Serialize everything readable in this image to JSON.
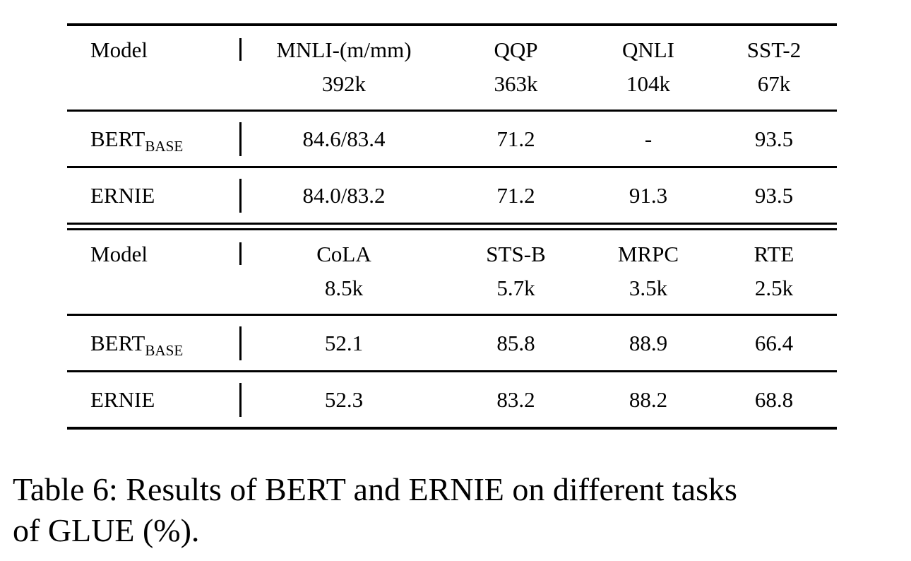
{
  "page": {
    "background": "#ffffff",
    "text_color": "#000000",
    "rule_color": "#000000"
  },
  "tables": [
    {
      "header": {
        "model_label": "Model",
        "columns": [
          {
            "label": "MNLI-(m/mm)",
            "size": "392k"
          },
          {
            "label": "QQP",
            "size": "363k"
          },
          {
            "label": "QNLI",
            "size": "104k"
          },
          {
            "label": "SST-2",
            "size": "67k"
          }
        ]
      },
      "rows": [
        {
          "model": "BERT",
          "model_subscript": "BASE",
          "values": [
            "84.6/83.4",
            "71.2",
            "-",
            "93.5"
          ]
        },
        {
          "model": "ERNIE",
          "model_subscript": "",
          "values": [
            "84.0/83.2",
            "71.2",
            "91.3",
            "93.5"
          ]
        }
      ]
    },
    {
      "header": {
        "model_label": "Model",
        "columns": [
          {
            "label": "CoLA",
            "size": "8.5k"
          },
          {
            "label": "STS-B",
            "size": "5.7k"
          },
          {
            "label": "MRPC",
            "size": "3.5k"
          },
          {
            "label": "RTE",
            "size": "2.5k"
          }
        ]
      },
      "rows": [
        {
          "model": "BERT",
          "model_subscript": "BASE",
          "values": [
            "52.1",
            "85.8",
            "88.9",
            "66.4"
          ]
        },
        {
          "model": "ERNIE",
          "model_subscript": "",
          "values": [
            "52.3",
            "83.2",
            "88.2",
            "68.8"
          ]
        }
      ]
    }
  ],
  "caption": {
    "line1": "Table 6: Results of BERT and ERNIE on different tasks",
    "line2": "of GLUE (%)."
  }
}
